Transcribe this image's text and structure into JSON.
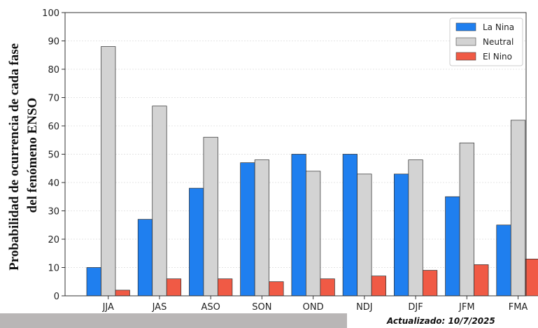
{
  "chart_data": {
    "type": "bar",
    "title": "",
    "xlabel": "",
    "ylabel_lines": [
      "Probabilidad de ocurrencia  de cada fase",
      "del fenómeno ENSO"
    ],
    "ylim": [
      0,
      100
    ],
    "yticks": [
      0,
      10,
      20,
      30,
      40,
      50,
      60,
      70,
      80,
      90,
      100
    ],
    "categories": [
      "JJA",
      "JAS",
      "ASO",
      "SON",
      "OND",
      "NDJ",
      "DJF",
      "JFM",
      "FMA"
    ],
    "series": [
      {
        "name": "La Nina",
        "color": "#1f7fef",
        "values": [
          10,
          27,
          38,
          47,
          50,
          50,
          43,
          35,
          25
        ]
      },
      {
        "name": "Neutral",
        "color": "#d3d3d3",
        "values": [
          88,
          67,
          56,
          48,
          44,
          43,
          48,
          54,
          62
        ]
      },
      {
        "name": "El Nino",
        "color": "#f05a45",
        "values": [
          2,
          6,
          6,
          5,
          6,
          7,
          9,
          11,
          13
        ]
      }
    ],
    "grid": "horizontal",
    "legend_position": "top-right"
  },
  "footer": {
    "updated_text": "Actualizado: 10/7/2025"
  }
}
